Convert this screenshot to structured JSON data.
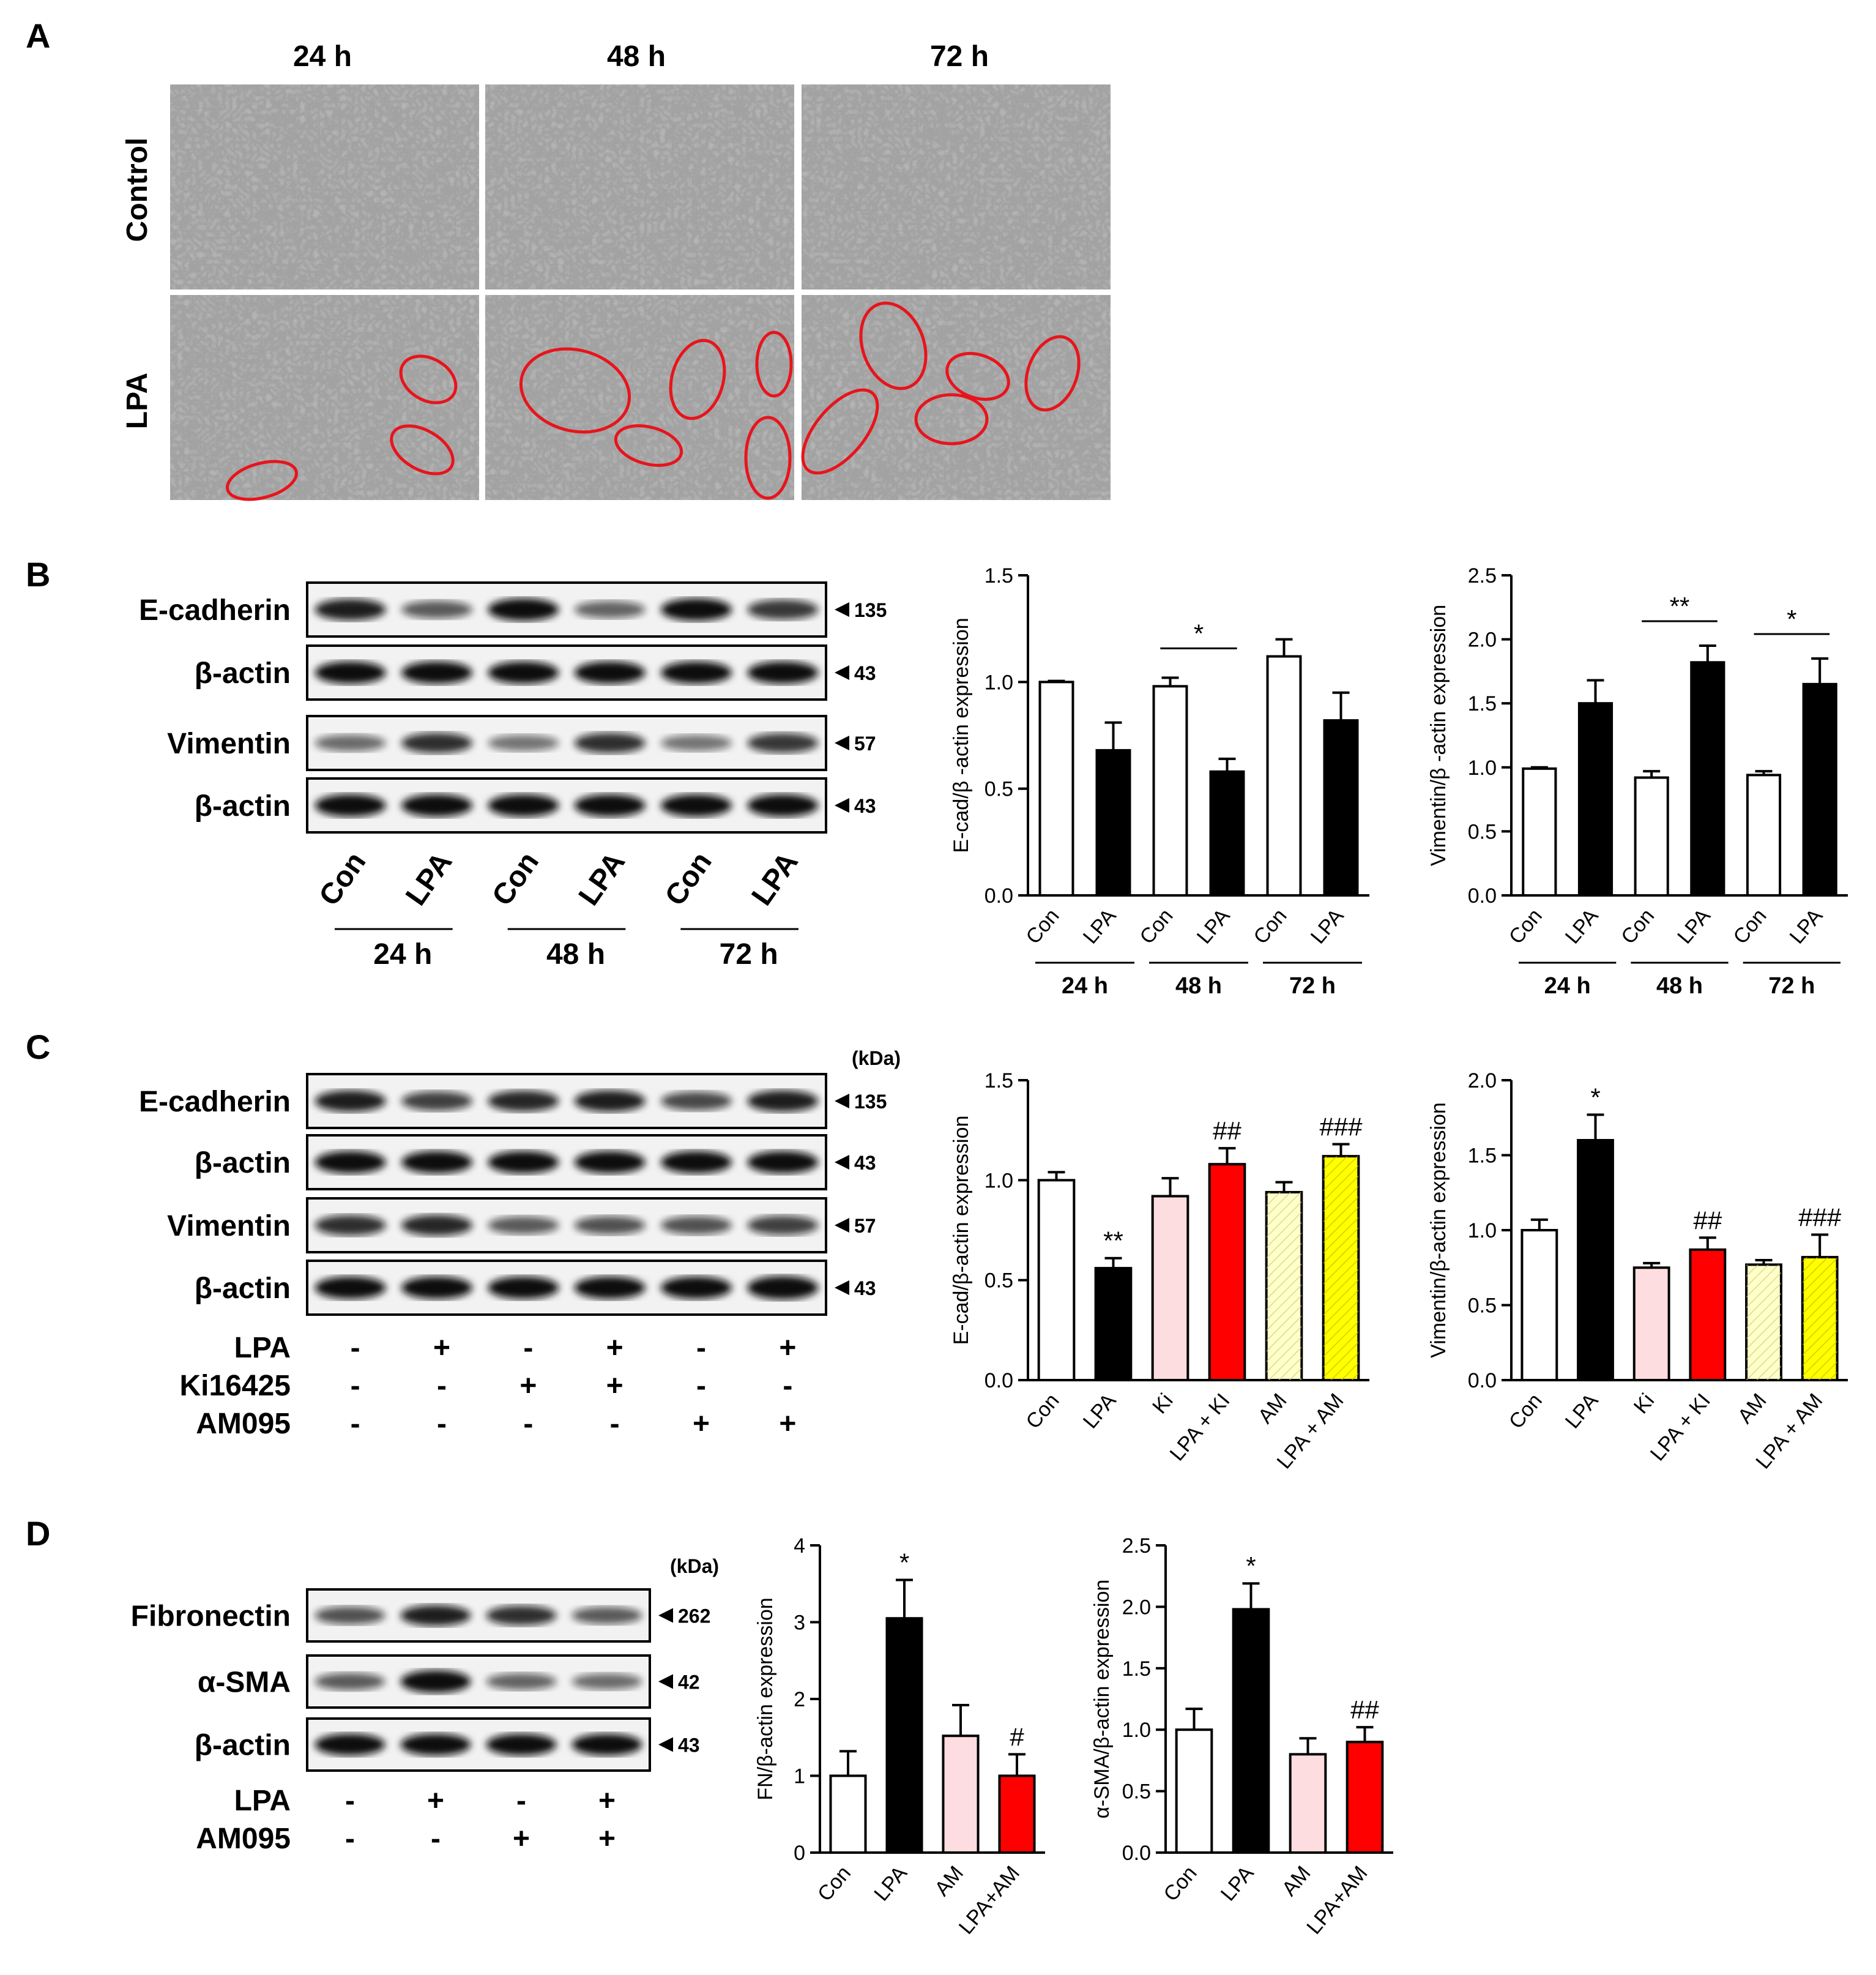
{
  "panels": {
    "A": {
      "letter": "A",
      "columns": [
        "24 h",
        "48 h",
        "72 h"
      ],
      "rows": [
        "Control",
        "LPA"
      ]
    },
    "B": {
      "letter": "B",
      "blot": {
        "rows": [
          {
            "label": "E-cadherin",
            "kda": "135"
          },
          {
            "label": "β-actin",
            "kda": "43"
          },
          {
            "label": "Vimentin",
            "kda": "57"
          },
          {
            "label": "β-actin",
            "kda": "43"
          }
        ],
        "lanes": [
          "Con",
          "LPA",
          "Con",
          "LPA",
          "Con",
          "LPA"
        ],
        "groups": [
          "24 h",
          "48 h",
          "72 h"
        ]
      }
    },
    "C": {
      "letter": "C",
      "kda_header": "(kDa)",
      "blot": {
        "rows": [
          {
            "label": "E-cadherin",
            "kda": "135"
          },
          {
            "label": "β-actin",
            "kda": "43"
          },
          {
            "label": "Vimentin",
            "kda": "57"
          },
          {
            "label": "β-actin",
            "kda": "43"
          }
        ],
        "treatments": [
          {
            "label": "LPA",
            "signs": [
              "-",
              "+",
              "-",
              "+",
              "-",
              "+"
            ]
          },
          {
            "label": "Ki16425",
            "signs": [
              "-",
              "-",
              "+",
              "+",
              "-",
              "-"
            ]
          },
          {
            "label": "AM095",
            "signs": [
              "-",
              "-",
              "-",
              "-",
              "+",
              "+"
            ]
          }
        ]
      }
    },
    "D": {
      "letter": "D",
      "kda_header": "(kDa)",
      "blot": {
        "rows": [
          {
            "label": "Fibronectin",
            "kda": "262"
          },
          {
            "label": "α-SMA",
            "kda": "42"
          },
          {
            "label": "β-actin",
            "kda": "43"
          }
        ],
        "treatments": [
          {
            "label": "LPA",
            "signs": [
              "-",
              "+",
              "-",
              "+"
            ]
          },
          {
            "label": "AM095",
            "signs": [
              "-",
              "-",
              "+",
              "+"
            ]
          }
        ]
      }
    }
  },
  "chart_data": [
    {
      "id": "B1",
      "type": "bar",
      "ylabel": "E-cad/β -actin expression",
      "ylim": [
        0,
        1.5
      ],
      "yticks": [
        "0.0",
        "0.5",
        "1.0",
        "1.5"
      ],
      "categories": [
        "Con",
        "LPA",
        "Con",
        "LPA",
        "Con",
        "LPA"
      ],
      "groups": [
        "24 h",
        "48 h",
        "72 h"
      ],
      "values": [
        1.0,
        0.68,
        0.98,
        0.58,
        1.12,
        0.82
      ],
      "errors": [
        0.005,
        0.13,
        0.04,
        0.06,
        0.08,
        0.13
      ],
      "fills": [
        "#ffffff",
        "#000000",
        "#ffffff",
        "#000000",
        "#ffffff",
        "#000000"
      ],
      "annotations": [
        {
          "text": "*",
          "from": 2,
          "to": 3
        }
      ]
    },
    {
      "id": "B2",
      "type": "bar",
      "ylabel": "Vimentin/β -actin expression",
      "ylim": [
        0,
        2.5
      ],
      "yticks": [
        "0.0",
        "0.5",
        "1.0",
        "1.5",
        "2.0",
        "2.5"
      ],
      "categories": [
        "Con",
        "LPA",
        "Con",
        "LPA",
        "Con",
        "LPA"
      ],
      "groups": [
        "24 h",
        "48 h",
        "72  h"
      ],
      "values": [
        0.99,
        1.5,
        0.92,
        1.82,
        0.94,
        1.65
      ],
      "errors": [
        0.01,
        0.18,
        0.05,
        0.13,
        0.03,
        0.2
      ],
      "fills": [
        "#ffffff",
        "#000000",
        "#ffffff",
        "#000000",
        "#ffffff",
        "#000000"
      ],
      "annotations": [
        {
          "text": "**",
          "from": 2,
          "to": 3
        },
        {
          "text": "*",
          "from": 4,
          "to": 5
        }
      ]
    },
    {
      "id": "C1",
      "type": "bar",
      "ylabel": "E-cad/β-actin expression",
      "ylim": [
        0,
        1.5
      ],
      "yticks": [
        "0.0",
        "0.5",
        "1.0",
        "1.5"
      ],
      "categories": [
        "Con",
        "LPA",
        "Ki",
        "LPA + KI",
        "AM",
        "LPA + AM"
      ],
      "values": [
        1.0,
        0.56,
        0.92,
        1.08,
        0.94,
        1.12
      ],
      "errors": [
        0.04,
        0.05,
        0.09,
        0.08,
        0.05,
        0.06
      ],
      "fills": [
        "#ffffff",
        "#000000",
        "#fddde0",
        "#ff0000",
        "#ffffcc",
        "#ffff00"
      ],
      "labels": [
        "",
        "**",
        "",
        "##",
        "",
        "###"
      ]
    },
    {
      "id": "C2",
      "type": "bar",
      "ylabel": "Vimentin/β-actin expression",
      "ylim": [
        0,
        2.0
      ],
      "yticks": [
        "0.0",
        "0.5",
        "1.0",
        "1.5",
        "2.0"
      ],
      "categories": [
        "Con",
        "LPA",
        "Ki",
        "LPA + KI",
        "AM",
        "LPA + AM"
      ],
      "values": [
        1.0,
        1.6,
        0.75,
        0.87,
        0.77,
        0.82
      ],
      "errors": [
        0.07,
        0.17,
        0.03,
        0.08,
        0.03,
        0.15
      ],
      "fills": [
        "#ffffff",
        "#000000",
        "#fddde0",
        "#ff0000",
        "#ffffcc",
        "#ffff00"
      ],
      "labels": [
        "",
        "*",
        "",
        "##",
        "",
        "###"
      ]
    },
    {
      "id": "D1",
      "type": "bar",
      "ylabel": "FN/β-actin expression",
      "ylim": [
        0,
        4
      ],
      "yticks": [
        "0",
        "1",
        "2",
        "3",
        "4"
      ],
      "categories": [
        "Con",
        "LPA",
        "AM",
        "LPA+AM"
      ],
      "values": [
        1.0,
        3.05,
        1.52,
        1.0
      ],
      "errors": [
        0.32,
        0.5,
        0.4,
        0.28
      ],
      "fills": [
        "#ffffff",
        "#000000",
        "#fddde0",
        "#ff0000"
      ],
      "labels": [
        "",
        "*",
        "",
        "#"
      ]
    },
    {
      "id": "D2",
      "type": "bar",
      "ylabel": "α-SMA/β-actin expression",
      "ylim": [
        0,
        2.5
      ],
      "yticks": [
        "0.0",
        "0.5",
        "1.0",
        "1.5",
        "2.0",
        "2.5"
      ],
      "categories": [
        "Con",
        "LPA",
        "AM",
        "LPA+AM"
      ],
      "values": [
        1.0,
        1.98,
        0.8,
        0.9
      ],
      "errors": [
        0.17,
        0.21,
        0.13,
        0.12
      ],
      "fills": [
        "#ffffff",
        "#000000",
        "#fddde0",
        "#ff0000"
      ],
      "labels": [
        "",
        "*",
        "",
        "##"
      ]
    }
  ]
}
